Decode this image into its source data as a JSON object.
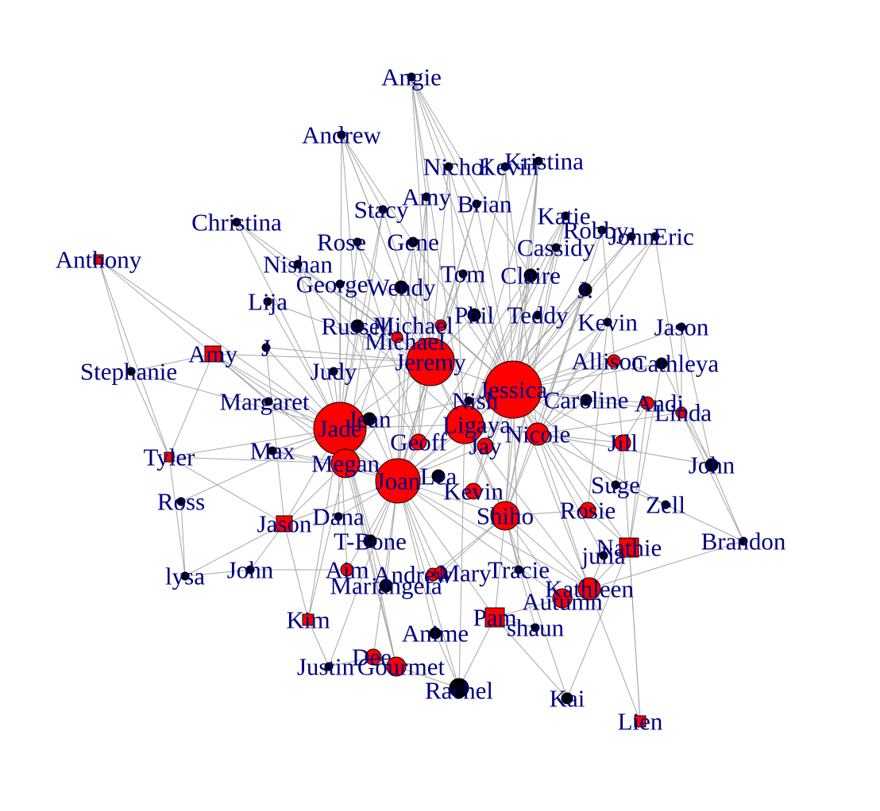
{
  "graph": {
    "colors": {
      "background": "#ffffff",
      "edge": "#a6a6a6",
      "label": "#000080",
      "node_fill_red": "#ff0000",
      "node_fill_black": "#000000",
      "node_stroke": "#000000"
    },
    "nodes": [
      {
        "id": "angie",
        "label": "Angie",
        "shape": "circle",
        "fill": "black"
      },
      {
        "id": "andrew",
        "label": "Andrew",
        "shape": "circle",
        "fill": "black"
      },
      {
        "id": "nicholas",
        "label": "Nichol",
        "shape": "circle",
        "fill": "black"
      },
      {
        "id": "kevin_top",
        "label": "Kevin",
        "shape": "circle",
        "fill": "black"
      },
      {
        "id": "kristina",
        "label": "Kristina",
        "shape": "circle",
        "fill": "black"
      },
      {
        "id": "amy_top",
        "label": "Amy",
        "shape": "circle",
        "fill": "black"
      },
      {
        "id": "brian",
        "label": "Brian",
        "shape": "circle",
        "fill": "black"
      },
      {
        "id": "stacy",
        "label": "Stacy",
        "shape": "circle",
        "fill": "black"
      },
      {
        "id": "christina",
        "label": "Christina",
        "shape": "circle",
        "fill": "black"
      },
      {
        "id": "katie",
        "label": "Katie",
        "shape": "circle",
        "fill": "black"
      },
      {
        "id": "robby",
        "label": "Robby",
        "shape": "circle",
        "fill": "black"
      },
      {
        "id": "john_top",
        "label": "John",
        "shape": "circle",
        "fill": "black"
      },
      {
        "id": "eric",
        "label": "Eric",
        "shape": "circle",
        "fill": "black"
      },
      {
        "id": "anthony",
        "label": "Anthony",
        "shape": "square",
        "fill": "red"
      },
      {
        "id": "rose",
        "label": "Rose",
        "shape": "circle",
        "fill": "black"
      },
      {
        "id": "gene",
        "label": "Gene",
        "shape": "circle",
        "fill": "black"
      },
      {
        "id": "cassidy",
        "label": "Cassidy",
        "shape": "circle",
        "fill": "black"
      },
      {
        "id": "nishan",
        "label": "Nishan",
        "shape": "circle",
        "fill": "black"
      },
      {
        "id": "tom",
        "label": "Tom",
        "shape": "circle",
        "fill": "black"
      },
      {
        "id": "claire",
        "label": "Claire",
        "shape": "circle",
        "fill": "black"
      },
      {
        "id": "george",
        "label": "George",
        "shape": "circle",
        "fill": "black"
      },
      {
        "id": "wendy",
        "label": "Wendy",
        "shape": "circle",
        "fill": "black"
      },
      {
        "id": "j_right",
        "label": "J.",
        "shape": "circle",
        "fill": "black"
      },
      {
        "id": "lija",
        "label": "Lija",
        "shape": "circle",
        "fill": "black"
      },
      {
        "id": "phil",
        "label": "Phil",
        "shape": "circle",
        "fill": "black"
      },
      {
        "id": "teddy",
        "label": "Teddy",
        "shape": "circle",
        "fill": "black"
      },
      {
        "id": "russell",
        "label": "Russell",
        "shape": "circle",
        "fill": "black"
      },
      {
        "id": "michael_a",
        "label": "Michael",
        "shape": "circle",
        "fill": "red"
      },
      {
        "id": "michael_b",
        "label": "Michael",
        "shape": "circle",
        "fill": "red"
      },
      {
        "id": "kevin_right",
        "label": "Kevin",
        "shape": "circle",
        "fill": "black"
      },
      {
        "id": "jason_right",
        "label": "Jason",
        "shape": "circle",
        "fill": "black"
      },
      {
        "id": "amy_left",
        "label": "Amy",
        "shape": "square",
        "fill": "red"
      },
      {
        "id": "j_left",
        "label": "J",
        "shape": "circle",
        "fill": "black"
      },
      {
        "id": "jeremy",
        "label": "Jeremy",
        "shape": "circle",
        "fill": "red"
      },
      {
        "id": "allison",
        "label": "Allison",
        "shape": "circle",
        "fill": "red"
      },
      {
        "id": "cathleya",
        "label": "Cathleya",
        "shape": "circle",
        "fill": "black"
      },
      {
        "id": "stephanie",
        "label": "Stephanie",
        "shape": "circle",
        "fill": "black"
      },
      {
        "id": "judy",
        "label": "Judy",
        "shape": "circle",
        "fill": "black"
      },
      {
        "id": "jessica",
        "label": "Jessica",
        "shape": "circle",
        "fill": "red"
      },
      {
        "id": "margaret",
        "label": "Margaret",
        "shape": "circle",
        "fill": "black"
      },
      {
        "id": "nish",
        "label": "Nish",
        "shape": "circle",
        "fill": "black"
      },
      {
        "id": "caroline",
        "label": "Caroline",
        "shape": "circle",
        "fill": "black"
      },
      {
        "id": "andi",
        "label": "Andi",
        "shape": "circle",
        "fill": "red"
      },
      {
        "id": "jade",
        "label": "Jade",
        "shape": "circle",
        "fill": "red"
      },
      {
        "id": "jean",
        "label": "Jean",
        "shape": "circle",
        "fill": "black"
      },
      {
        "id": "ligaya",
        "label": "Ligaya",
        "shape": "circle",
        "fill": "red"
      },
      {
        "id": "linda",
        "label": "Linda",
        "shape": "circle",
        "fill": "red"
      },
      {
        "id": "nicole",
        "label": "Nicole",
        "shape": "circle",
        "fill": "red"
      },
      {
        "id": "geoff",
        "label": "Geoff",
        "shape": "circle",
        "fill": "red"
      },
      {
        "id": "jay",
        "label": "Jay",
        "shape": "circle",
        "fill": "red"
      },
      {
        "id": "jill",
        "label": "Jill",
        "shape": "circle",
        "fill": "red"
      },
      {
        "id": "max",
        "label": "Max",
        "shape": "circle",
        "fill": "black"
      },
      {
        "id": "tyler",
        "label": "Tyler",
        "shape": "square",
        "fill": "red"
      },
      {
        "id": "megan",
        "label": "Megan",
        "shape": "circle",
        "fill": "red"
      },
      {
        "id": "john_right",
        "label": "John",
        "shape": "circle",
        "fill": "black"
      },
      {
        "id": "joan",
        "label": "Joan",
        "shape": "circle",
        "fill": "red"
      },
      {
        "id": "lea",
        "label": "Lea",
        "shape": "circle",
        "fill": "black"
      },
      {
        "id": "kevin_mid",
        "label": "Kevin",
        "shape": "circle",
        "fill": "red"
      },
      {
        "id": "suge",
        "label": "Suge",
        "shape": "circle",
        "fill": "black"
      },
      {
        "id": "ross",
        "label": "Ross",
        "shape": "circle",
        "fill": "black"
      },
      {
        "id": "zell",
        "label": "Zell",
        "shape": "circle",
        "fill": "black"
      },
      {
        "id": "rosie",
        "label": "Rosie",
        "shape": "circle",
        "fill": "red"
      },
      {
        "id": "dana",
        "label": "Dana",
        "shape": "circle",
        "fill": "black"
      },
      {
        "id": "shiho",
        "label": "Shiho",
        "shape": "circle",
        "fill": "red"
      },
      {
        "id": "jason_left",
        "label": "Jason",
        "shape": "square",
        "fill": "red"
      },
      {
        "id": "brandon",
        "label": "Brandon",
        "shape": "circle",
        "fill": "black"
      },
      {
        "id": "tbone",
        "label": "T-Bone",
        "shape": "circle",
        "fill": "black"
      },
      {
        "id": "julia",
        "label": "julia",
        "shape": "circle",
        "fill": "black"
      },
      {
        "id": "nathie",
        "label": "Nathie",
        "shape": "square",
        "fill": "red"
      },
      {
        "id": "lysa",
        "label": "lysa",
        "shape": "circle",
        "fill": "black"
      },
      {
        "id": "john_left",
        "label": "John",
        "shape": "circle",
        "fill": "black"
      },
      {
        "id": "aim",
        "label": "Aim",
        "shape": "circle",
        "fill": "red"
      },
      {
        "id": "andrew_b",
        "label": "Andrew",
        "shape": "circle",
        "fill": "red"
      },
      {
        "id": "mary",
        "label": "Mary",
        "shape": "circle",
        "fill": "red"
      },
      {
        "id": "tracie",
        "label": "Tracie",
        "shape": "circle",
        "fill": "black"
      },
      {
        "id": "mariangela",
        "label": "Mariangela",
        "shape": "circle",
        "fill": "black"
      },
      {
        "id": "kathleen",
        "label": "Kathleen",
        "shape": "circle",
        "fill": "red"
      },
      {
        "id": "autumn",
        "label": "Autumn",
        "shape": "circle",
        "fill": "red"
      },
      {
        "id": "kim",
        "label": "Kim",
        "shape": "square",
        "fill": "red"
      },
      {
        "id": "pam",
        "label": "Pam",
        "shape": "square",
        "fill": "red"
      },
      {
        "id": "anime",
        "label": "Anime",
        "shape": "circle",
        "fill": "black"
      },
      {
        "id": "shaun",
        "label": "shaun",
        "shape": "circle",
        "fill": "black"
      },
      {
        "id": "justin",
        "label": "Justin",
        "shape": "circle",
        "fill": "black"
      },
      {
        "id": "dee",
        "label": "Dee",
        "shape": "circle",
        "fill": "red"
      },
      {
        "id": "gourmet",
        "label": "Gourmet",
        "shape": "circle",
        "fill": "red"
      },
      {
        "id": "rachel",
        "label": "Rachel",
        "shape": "circle",
        "fill": "black"
      },
      {
        "id": "kai",
        "label": "Kai",
        "shape": "circle",
        "fill": "black"
      },
      {
        "id": "lien",
        "label": "Lien",
        "shape": "square",
        "fill": "red"
      }
    ]
  }
}
